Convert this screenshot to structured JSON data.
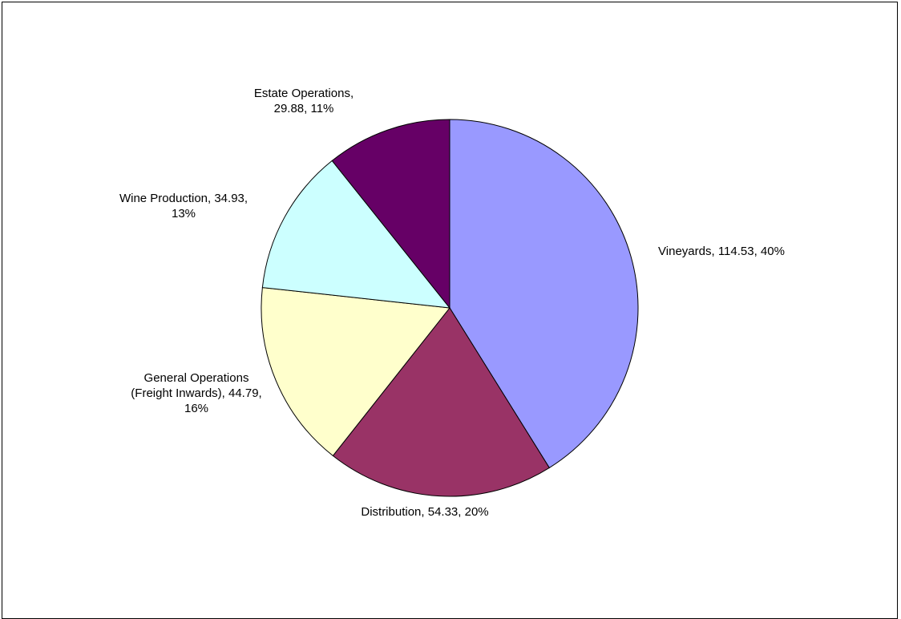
{
  "chart_data": {
    "type": "pie",
    "title": "",
    "legend": "none",
    "slices": [
      {
        "name": "Vineyards",
        "value": 114.53,
        "percent": "40%",
        "color": "#9999FF",
        "label_lines": [
          "Vineyards, 114.53, 40%"
        ]
      },
      {
        "name": "Distribution",
        "value": 54.33,
        "percent": "20%",
        "color": "#993366",
        "label_lines": [
          "Distribution, 54.33, 20%"
        ]
      },
      {
        "name": "General Operations (Freight Inwards)",
        "value": 44.79,
        "percent": "16%",
        "color": "#FFFFCC",
        "label_lines": [
          "General Operations",
          "(Freight Inwards), 44.79,",
          "16%"
        ]
      },
      {
        "name": "Wine Production",
        "value": 34.93,
        "percent": "13%",
        "color": "#CCFFFF",
        "label_lines": [
          "Wine Production, 34.93,",
          "13%"
        ]
      },
      {
        "name": "Estate Operations",
        "value": 29.88,
        "percent": "11%",
        "color": "#660066",
        "label_lines": [
          "Estate Operations,",
          "29.88, 11%"
        ]
      }
    ]
  }
}
